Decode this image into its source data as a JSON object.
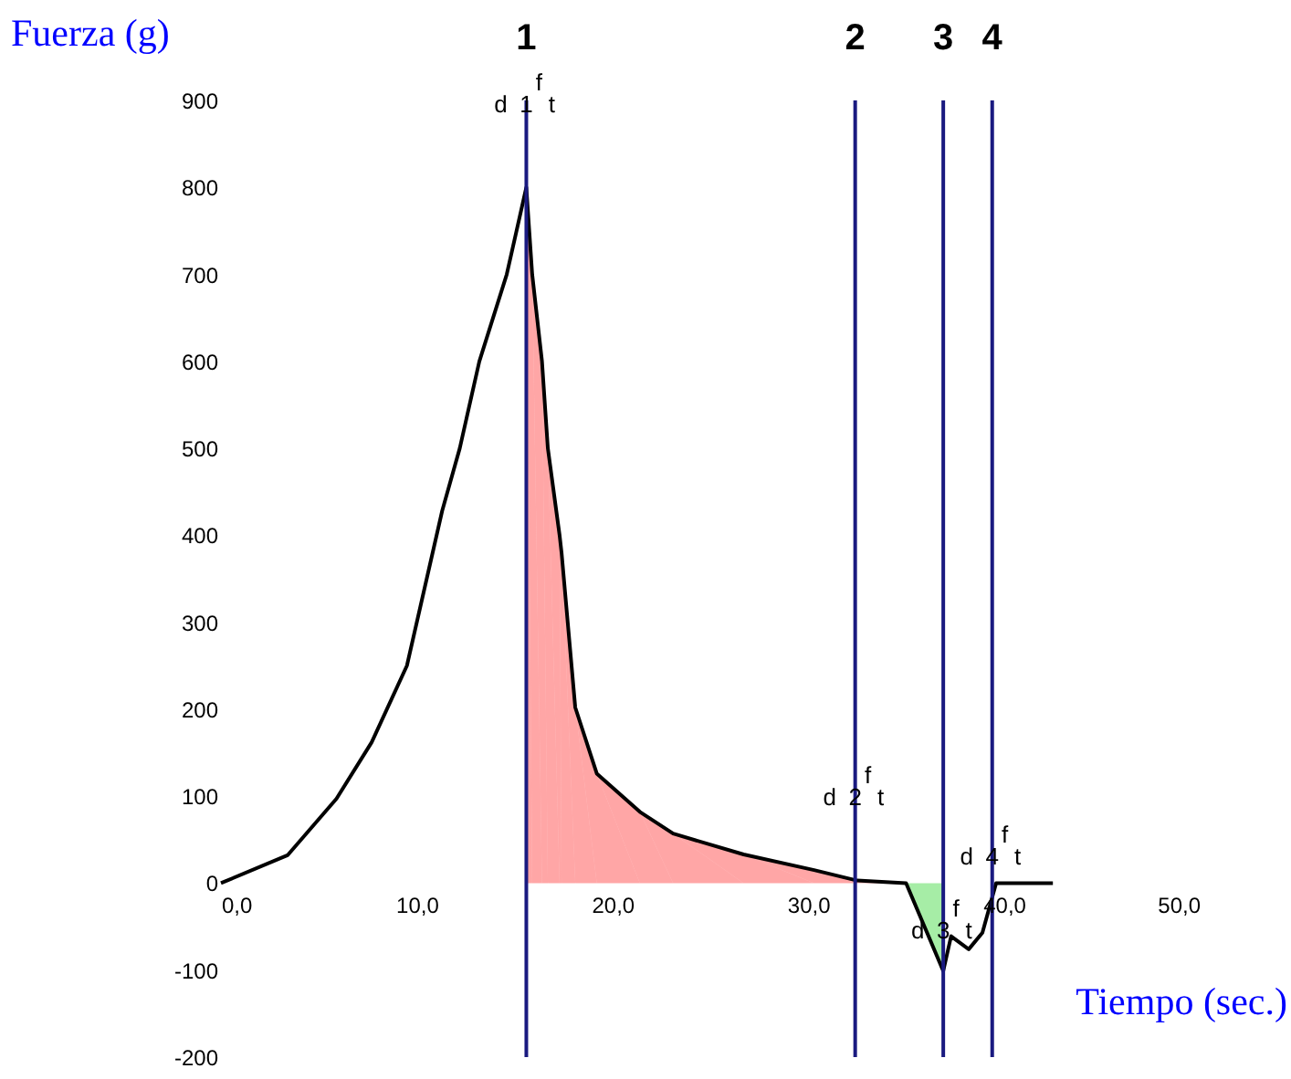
{
  "chart_data": {
    "type": "line",
    "xlabel": "Tiempo (sec.)",
    "ylabel": "Fuerza  (g)",
    "xlim": [
      0,
      50
    ],
    "ylim": [
      -200,
      900
    ],
    "xticks": [
      {
        "value": 0,
        "label": "0,0"
      },
      {
        "value": 10,
        "label": "10,0"
      },
      {
        "value": 20,
        "label": "20,0"
      },
      {
        "value": 30,
        "label": "30,0"
      },
      {
        "value": 40,
        "label": "40,0"
      },
      {
        "value": 50,
        "label": "50,0"
      }
    ],
    "yticks": [
      -200,
      -100,
      0,
      100,
      200,
      300,
      400,
      500,
      600,
      700,
      800,
      900
    ],
    "grid": false,
    "marker": "none",
    "line_style": "solid",
    "series": [
      {
        "type": "area",
        "color": "#ff0000",
        "x": [
          15.6,
          15.9,
          16.4,
          16.7,
          17.3,
          17.4,
          18.1,
          19.2,
          21.4,
          23.1,
          26.7,
          30.3,
          32.5,
          35.0
        ],
        "values": [
          800,
          700,
          600,
          500,
          400,
          380,
          202,
          126,
          82,
          57,
          33,
          15,
          3,
          0
        ]
      },
      {
        "type": "area",
        "color": "#00cc00",
        "x": [
          35.0,
          36.9
        ],
        "values": [
          0,
          -101
        ]
      },
      {
        "color": "#000000",
        "x": [
          0,
          3.4,
          5.9,
          7.7,
          9.5,
          11.3,
          12.2,
          13.2,
          14.6,
          15.6,
          15.9,
          16.4,
          16.7,
          17.3,
          17.4,
          18.1,
          19.2,
          21.4,
          23.1,
          26.7,
          30.3,
          32.5,
          35.0,
          36.9,
          37.3,
          38.2,
          38.9,
          39.6,
          42.5
        ],
        "values": [
          0,
          32,
          97,
          162,
          250,
          428,
          500,
          600,
          700,
          800,
          700,
          600,
          500,
          400,
          380,
          202,
          126,
          82,
          57,
          33,
          15,
          3,
          0,
          -101,
          -61,
          -76,
          -57,
          0,
          0
        ]
      }
    ],
    "ref_lines": [
      {
        "axis": "x",
        "value": 15.6,
        "color": "#1a1a80"
      },
      {
        "axis": "x",
        "value": 32.4,
        "color": "#1a1a80"
      },
      {
        "axis": "x",
        "value": 36.9,
        "color": "#1a1a80"
      },
      {
        "axis": "x",
        "value": 39.4,
        "color": "#1a1a80"
      }
    ],
    "annotations": [
      "1",
      "2",
      "3",
      "4",
      "d",
      "1",
      "f",
      "t",
      "d",
      "2",
      "f",
      "t",
      "d",
      "3",
      "f",
      "t",
      "d",
      "4",
      "f",
      "t"
    ]
  }
}
